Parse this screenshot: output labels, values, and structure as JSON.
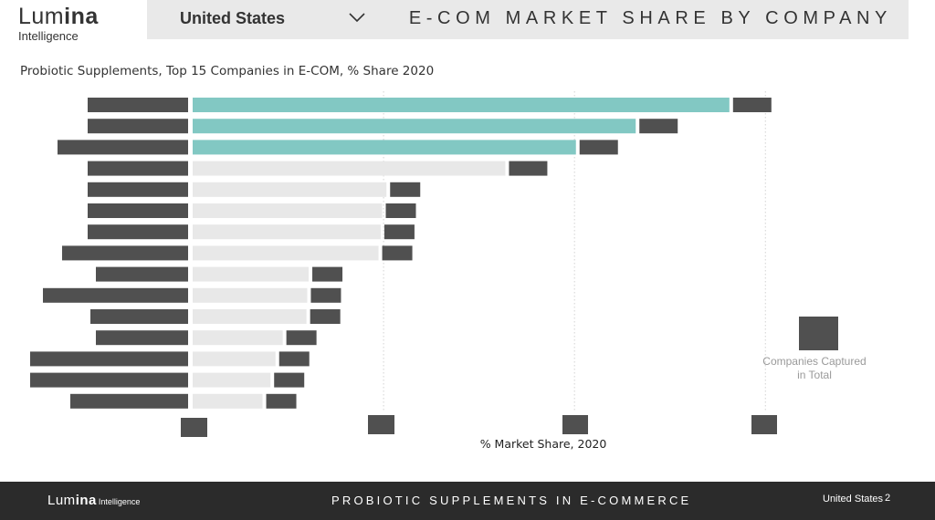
{
  "brand": {
    "logo_main_light": "Lum",
    "logo_main_bold": "ina",
    "logo_sub": "Intelligence"
  },
  "header": {
    "country": "United States",
    "page_heading": "E-COM MARKET SHARE BY COMPANY"
  },
  "chart_title": "Probiotic Supplements, Top 15 Companies in E-COM, % Share 2020",
  "legend": {
    "label": "Companies Captured in Total",
    "swatch_color": "#505050"
  },
  "chart_data": {
    "type": "bar",
    "orientation": "horizontal",
    "title": "Probiotic Supplements, Top 15 Companies in E-COM, % Share 2020",
    "xlabel": "% Market Share, 2020",
    "ylabel": "",
    "x_range_fraction": [
      0,
      1
    ],
    "categories_redacted": true,
    "tick_labels_redacted": true,
    "value_labels_redacted": true,
    "grid": "vertical dotted",
    "values_fraction_of_axis": [
      0.745,
      0.615,
      0.532,
      0.434,
      0.269,
      0.263,
      0.261,
      0.258,
      0.161,
      0.159,
      0.158,
      0.125,
      0.115,
      0.108,
      0.097
    ],
    "highlighted_count": 3,
    "colors": {
      "highlight": "#82c8c3",
      "default": "#e8e8e8",
      "redaction": "#505050",
      "grid": "#d2d2d2"
    }
  },
  "footer": {
    "title": "PROBIOTIC SUPPLEMENTS IN E-COMMERCE",
    "country": "United States",
    "page_number": "2",
    "logo_main_light": "Lum",
    "logo_main_bold": "ina",
    "logo_sub": "Intelligence"
  }
}
